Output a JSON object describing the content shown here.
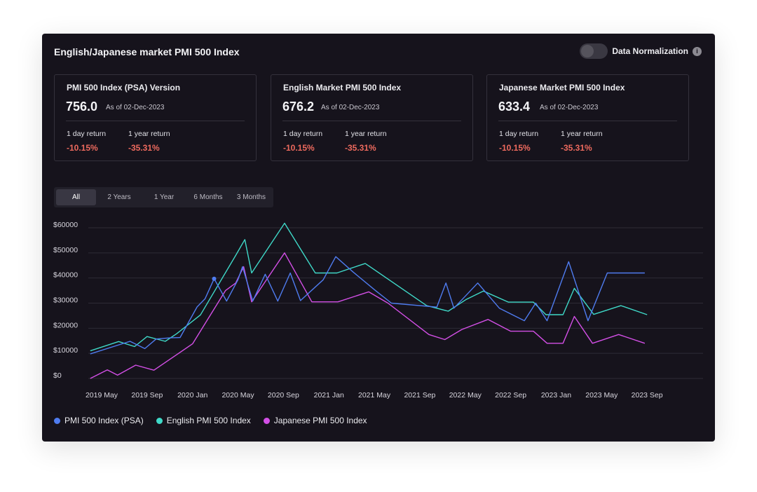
{
  "header": {
    "title": "English/Japanese market PMI 500 Index",
    "normalization_label": "Data Normalization",
    "normalization_on": false,
    "info_glyph": "i"
  },
  "stats": [
    {
      "title": "PMI 500 Index (PSA) Version",
      "value": "756.0",
      "as_of": "As of 02-Dec-2023",
      "day_label": "1 day return",
      "day_value": "-10.15%",
      "year_label": "1 year return",
      "year_value": "-35.31%"
    },
    {
      "title": "English Market PMI 500 Index",
      "value": "676.2",
      "as_of": "As of 02-Dec-2023",
      "day_label": "1 day return",
      "day_value": "-10.15%",
      "year_label": "1 year return",
      "year_value": "-35.31%"
    },
    {
      "title": "Japanese Market PMI 500 Index",
      "value": "633.4",
      "as_of": "As of 02-Dec-2023",
      "day_label": "1 day return",
      "day_value": "-10.15%",
      "year_label": "1 year return",
      "year_value": "-35.31%"
    }
  ],
  "tabs": [
    "All",
    "2 Years",
    "1 Year",
    "6 Months",
    "3 Months"
  ],
  "active_tab": "All",
  "colors": {
    "background": "#16131c",
    "grid": "#2e2b36",
    "negative": "#ee6a5e",
    "psa": "#4f7cf0",
    "english": "#3fd9c8",
    "japanese": "#d34fe6"
  },
  "chart_data": {
    "type": "line",
    "title": "",
    "xlabel": "",
    "ylabel": "",
    "ylim": [
      0,
      60000
    ],
    "xlim": [
      0,
      52
    ],
    "y_ticks": [
      0,
      10000,
      20000,
      30000,
      40000,
      50000,
      60000
    ],
    "y_tick_labels": [
      "$0",
      "$10000",
      "$20000",
      "$30000",
      "$40000",
      "$50000",
      "$60000"
    ],
    "x_ticks": [
      0,
      4,
      8,
      12,
      16,
      20,
      24,
      28,
      32,
      36,
      40,
      44,
      48
    ],
    "x_tick_labels": [
      "2019 May",
      "2019 Sep",
      "2020 Jan",
      "2020 May",
      "2020 Sep",
      "2021 Jan",
      "2021 May",
      "2021 Sep",
      "2022 May",
      "2022 Sep",
      "2023 Jan",
      "2023 May",
      "2023 Sep"
    ],
    "grid": true,
    "legend_position": "bottom-left",
    "series": [
      {
        "name": "PMI 500 Index (PSA)",
        "color": "#4f7cf0",
        "marker_at": [
          9.9,
          39700
        ],
        "points": [
          [
            -1,
            9800
          ],
          [
            2.5,
            14800
          ],
          [
            3.8,
            11900
          ],
          [
            4.8,
            15700
          ],
          [
            6.1,
            16200
          ],
          [
            6.9,
            16300
          ],
          [
            8.4,
            28500
          ],
          [
            9.1,
            31700
          ],
          [
            9.9,
            39700
          ],
          [
            11,
            30800
          ],
          [
            12,
            39300
          ],
          [
            12.4,
            44500
          ],
          [
            13.3,
            30800
          ],
          [
            14.4,
            41500
          ],
          [
            15.5,
            30800
          ],
          [
            16.6,
            42000
          ],
          [
            17.5,
            31000
          ],
          [
            19.5,
            39300
          ],
          [
            20.6,
            48500
          ],
          [
            22.1,
            42500
          ],
          [
            24.1,
            35000
          ],
          [
            25.5,
            30000
          ],
          [
            29.5,
            28400
          ],
          [
            30.3,
            38000
          ],
          [
            31,
            28000
          ],
          [
            33.1,
            38000
          ],
          [
            35,
            28000
          ],
          [
            37.2,
            23000
          ],
          [
            38.2,
            30000
          ],
          [
            39.2,
            23000
          ],
          [
            41.1,
            46500
          ],
          [
            42.8,
            23000
          ],
          [
            44.5,
            42000
          ],
          [
            47.8,
            42000
          ]
        ]
      },
      {
        "name": "English PMI 500 Index",
        "color": "#3fd9c8",
        "points": [
          [
            -1,
            11000
          ],
          [
            1.5,
            14700
          ],
          [
            2.9,
            12700
          ],
          [
            4,
            16700
          ],
          [
            5.6,
            14800
          ],
          [
            6.6,
            17800
          ],
          [
            8.7,
            25300
          ],
          [
            11.8,
            49000
          ],
          [
            12.6,
            55300
          ],
          [
            13.2,
            42000
          ],
          [
            16.1,
            61800
          ],
          [
            18.8,
            42000
          ],
          [
            20.7,
            42000
          ],
          [
            23.2,
            45800
          ],
          [
            28.6,
            29000
          ],
          [
            30.5,
            26800
          ],
          [
            32.1,
            31500
          ],
          [
            33.6,
            34800
          ],
          [
            35.8,
            30400
          ],
          [
            38,
            30400
          ],
          [
            39.1,
            25400
          ],
          [
            40.6,
            25400
          ],
          [
            41.6,
            35900
          ],
          [
            43.3,
            25500
          ],
          [
            45.7,
            29000
          ],
          [
            48,
            25400
          ]
        ]
      },
      {
        "name": "Japanese PMI 500 Index",
        "color": "#d34fe6",
        "points": [
          [
            -1,
            0
          ],
          [
            0.5,
            3400
          ],
          [
            1.4,
            1300
          ],
          [
            3,
            5300
          ],
          [
            4.6,
            3300
          ],
          [
            8,
            13800
          ],
          [
            10.9,
            35000
          ],
          [
            11.8,
            38000
          ],
          [
            12.5,
            44500
          ],
          [
            13.2,
            30500
          ],
          [
            16.1,
            50000
          ],
          [
            18.5,
            30500
          ],
          [
            20.8,
            30500
          ],
          [
            23.5,
            34500
          ],
          [
            25.2,
            30000
          ],
          [
            28.8,
            17500
          ],
          [
            30.2,
            15500
          ],
          [
            31.7,
            19500
          ],
          [
            34,
            23500
          ],
          [
            36,
            18800
          ],
          [
            38,
            18800
          ],
          [
            39.2,
            14000
          ],
          [
            40.6,
            14000
          ],
          [
            41.6,
            24700
          ],
          [
            43.2,
            14000
          ],
          [
            45.5,
            17500
          ],
          [
            47.8,
            14000
          ]
        ]
      }
    ]
  }
}
